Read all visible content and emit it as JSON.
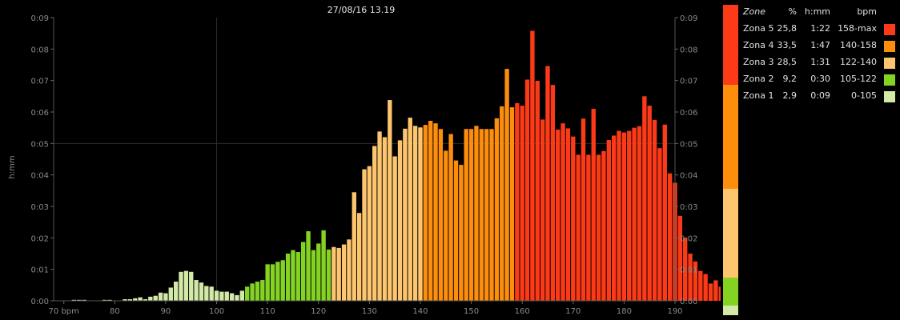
{
  "chart_data": {
    "type": "bar",
    "title": "27/08/16 13.19",
    "ylabel": "h:mm",
    "xlabel": "",
    "xlim": [
      68,
      190
    ],
    "ylim": [
      0,
      0.09
    ],
    "x_ticks": [
      {
        "value": 70,
        "label": "70 bpm"
      },
      {
        "value": 80,
        "label": "80"
      },
      {
        "value": 90,
        "label": "90"
      },
      {
        "value": 100,
        "label": "100"
      },
      {
        "value": 110,
        "label": "110"
      },
      {
        "value": 120,
        "label": "120"
      },
      {
        "value": 130,
        "label": "130"
      },
      {
        "value": 140,
        "label": "140"
      },
      {
        "value": 150,
        "label": "150"
      },
      {
        "value": 160,
        "label": "160"
      },
      {
        "value": 170,
        "label": "170"
      },
      {
        "value": 180,
        "label": "180"
      },
      {
        "value": 190,
        "label": "190"
      }
    ],
    "y_ticks": [
      {
        "value": 0,
        "label": "0:00"
      },
      {
        "value": 0.01,
        "label": "0:01"
      },
      {
        "value": 0.02,
        "label": "0:02"
      },
      {
        "value": 0.03,
        "label": "0:03"
      },
      {
        "value": 0.04,
        "label": "0:04"
      },
      {
        "value": 0.05,
        "label": "0:05"
      },
      {
        "value": 0.06,
        "label": "0:06"
      },
      {
        "value": 0.07,
        "label": "0:07"
      },
      {
        "value": 0.08,
        "label": "0:08"
      },
      {
        "value": 0.09,
        "label": "0:09"
      }
    ],
    "grid_x": [
      100
    ],
    "grid_y": [
      0.05
    ],
    "bpm_start": 72,
    "bpm_step": 1,
    "values": [
      0.0003,
      0.0003,
      0.0003,
      0,
      0,
      0,
      0.0003,
      0.0003,
      0,
      0,
      0.0005,
      0.0005,
      0.0008,
      0.0011,
      0.0005,
      0.0013,
      0.0016,
      0.0026,
      0.0024,
      0.0042,
      0.0061,
      0.0092,
      0.0095,
      0.0092,
      0.0066,
      0.0058,
      0.0047,
      0.0045,
      0.0032,
      0.0029,
      0.0029,
      0.0024,
      0.0018,
      0.0032,
      0.0045,
      0.0055,
      0.0061,
      0.0066,
      0.0116,
      0.0116,
      0.0124,
      0.0129,
      0.015,
      0.0161,
      0.0155,
      0.0187,
      0.0221,
      0.0161,
      0.0182,
      0.0224,
      0.0163,
      0.0171,
      0.0168,
      0.0179,
      0.0195,
      0.0345,
      0.0279,
      0.0418,
      0.0428,
      0.0492,
      0.0538,
      0.052,
      0.0638,
      0.0459,
      0.051,
      0.0547,
      0.0582,
      0.0556,
      0.0551,
      0.0559,
      0.0572,
      0.0564,
      0.0546,
      0.0477,
      0.053,
      0.0446,
      0.0432,
      0.0546,
      0.0546,
      0.0556,
      0.0546,
      0.0546,
      0.0546,
      0.058,
      0.0618,
      0.0737,
      0.0615,
      0.0628,
      0.062,
      0.0703,
      0.0858,
      0.0699,
      0.0576,
      0.0746,
      0.0686,
      0.0544,
      0.0564,
      0.0548,
      0.0522,
      0.0464,
      0.0579,
      0.0464,
      0.061,
      0.0464,
      0.0476,
      0.0511,
      0.0525,
      0.054,
      0.0535,
      0.054,
      0.055,
      0.0555,
      0.065,
      0.062,
      0.0575,
      0.0485,
      0.056,
      0.0405,
      0.0375,
      0.027,
      0.02,
      0.015,
      0.0125,
      0.0095,
      0.0085,
      0.0055,
      0.0065,
      0.0045,
      0.0025,
      0.0015,
      0.0008,
      0.0005,
      0.0003
    ],
    "zones": [
      {
        "name": "Zona 1",
        "from": 0,
        "to": 105,
        "color": "#d3e9a8"
      },
      {
        "name": "Zona 2",
        "from": 106,
        "to": 122,
        "color": "#84d323"
      },
      {
        "name": "Zona 3",
        "from": 123,
        "to": 140,
        "color": "#fdc56e"
      },
      {
        "name": "Zona 4",
        "from": 141,
        "to": 158,
        "color": "#fc8e0c"
      },
      {
        "name": "Zona 5",
        "from": 159,
        "to": 999,
        "color": "#fd3a17"
      }
    ],
    "zone_strip": [
      {
        "zone": "Zona 5",
        "fraction": 0.258,
        "color": "#fd3a17"
      },
      {
        "zone": "Zona 4",
        "fraction": 0.335,
        "color": "#fc8e0c"
      },
      {
        "zone": "Zona 3",
        "fraction": 0.285,
        "color": "#fdc56e"
      },
      {
        "zone": "Zona 2",
        "fraction": 0.092,
        "color": "#84d323"
      },
      {
        "zone": "Zona 1",
        "fraction": 0.029,
        "color": "#d3e9a8"
      }
    ]
  },
  "legend": {
    "headers": {
      "zone": "Zone",
      "pct": "%",
      "hmm": "h:mm",
      "bpm": "bpm"
    },
    "rows": [
      {
        "zone": "Zona 5",
        "pct": "25,8",
        "hmm": "1:22",
        "bpm": "158-max",
        "color": "#fd3a17"
      },
      {
        "zone": "Zona 4",
        "pct": "33,5",
        "hmm": "1:47",
        "bpm": "140-158",
        "color": "#fc8e0c"
      },
      {
        "zone": "Zona 3",
        "pct": "28,5",
        "hmm": "1:31",
        "bpm": "122-140",
        "color": "#fdc56e"
      },
      {
        "zone": "Zona 2",
        "pct": "9,2",
        "hmm": "0:30",
        "bpm": "105-122",
        "color": "#84d323"
      },
      {
        "zone": "Zona 1",
        "pct": "2,9",
        "hmm": "0:09",
        "bpm": "0-105",
        "color": "#d3e9a8"
      }
    ]
  }
}
